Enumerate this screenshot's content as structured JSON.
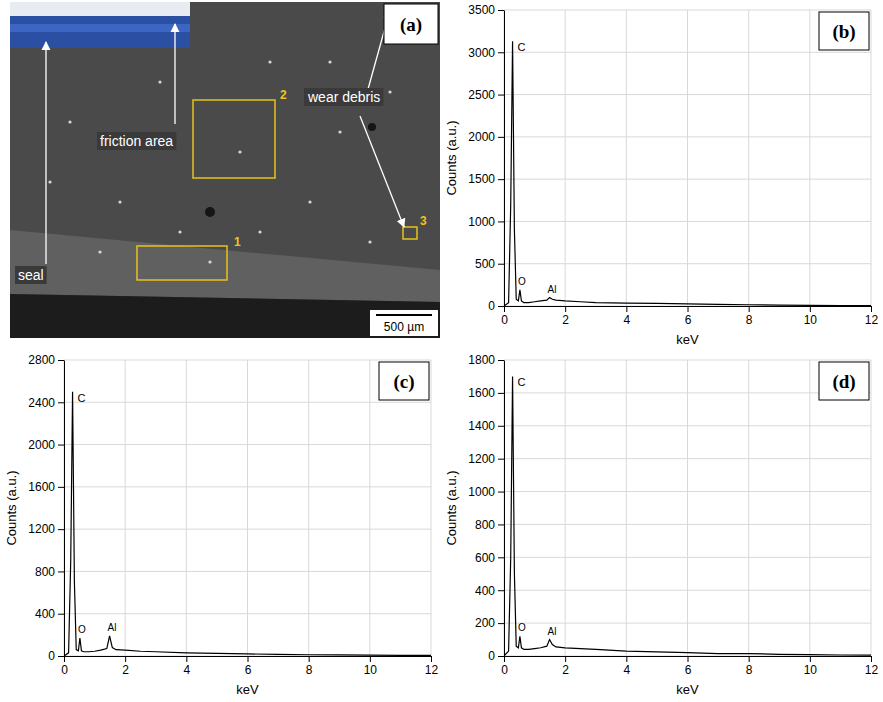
{
  "panel_a": {
    "label": "(a)",
    "annotations": [
      "seal",
      "friction area",
      "wear debris"
    ],
    "regions": [
      "1",
      "2",
      "3"
    ],
    "scale_bar": "500 µm"
  },
  "chart_data": [
    {
      "type": "line",
      "title": "(b)",
      "x_label": "keV",
      "y_label": "Counts (a.u.)",
      "color": "#000000",
      "grid": true,
      "x": [
        0,
        0.15,
        0.22,
        0.28,
        0.34,
        0.4,
        0.47,
        0.52,
        0.57,
        0.65,
        0.8,
        1.0,
        1.2,
        1.4,
        1.49,
        1.58,
        1.7,
        2,
        2.5,
        3,
        4,
        5,
        6,
        7,
        8,
        9,
        10,
        11,
        12
      ],
      "values": [
        0,
        40,
        1200,
        3130,
        900,
        80,
        60,
        190,
        60,
        40,
        40,
        50,
        60,
        70,
        100,
        80,
        70,
        60,
        50,
        40,
        35,
        30,
        25,
        20,
        15,
        10,
        8,
        6,
        5
      ],
      "xlim": [
        0,
        12
      ],
      "xticks": [
        0,
        2,
        4,
        6,
        8,
        10,
        12
      ],
      "ylim": [
        0,
        3500
      ],
      "yticks": [
        0,
        500,
        1000,
        1500,
        2000,
        2500,
        3000,
        3500
      ],
      "annotations": [
        {
          "text": "C",
          "x": 0.28,
          "y": 3130
        },
        {
          "text": "O",
          "x": 0.52,
          "y": 190
        },
        {
          "text": "Al",
          "x": 1.49,
          "y": 100
        }
      ]
    },
    {
      "type": "line",
      "title": "(c)",
      "x_label": "keV",
      "y_label": "Counts (a.u.)",
      "color": "#000000",
      "grid": true,
      "x": [
        0,
        0.15,
        0.22,
        0.28,
        0.34,
        0.4,
        0.47,
        0.52,
        0.57,
        0.65,
        0.8,
        1.0,
        1.2,
        1.4,
        1.49,
        1.58,
        1.7,
        2,
        2.5,
        3,
        4,
        5,
        6,
        7,
        8,
        9,
        10,
        11,
        12
      ],
      "values": [
        0,
        30,
        900,
        2500,
        700,
        60,
        50,
        170,
        50,
        40,
        40,
        45,
        55,
        70,
        190,
        80,
        60,
        55,
        45,
        40,
        30,
        25,
        20,
        15,
        12,
        10,
        8,
        6,
        5
      ],
      "xlim": [
        0,
        12
      ],
      "xticks": [
        0,
        2,
        4,
        6,
        8,
        10,
        12
      ],
      "ylim": [
        0,
        2800
      ],
      "yticks": [
        0,
        400,
        800,
        1200,
        1600,
        2000,
        2400,
        2800
      ],
      "annotations": [
        {
          "text": "C",
          "x": 0.28,
          "y": 2500
        },
        {
          "text": "O",
          "x": 0.52,
          "y": 170
        },
        {
          "text": "Al",
          "x": 1.49,
          "y": 190
        }
      ]
    },
    {
      "type": "line",
      "title": "(d)",
      "x_label": "keV",
      "y_label": "Counts (a.u.)",
      "color": "#000000",
      "grid": true,
      "x": [
        0,
        0.15,
        0.22,
        0.28,
        0.34,
        0.4,
        0.47,
        0.52,
        0.57,
        0.65,
        0.8,
        1.0,
        1.2,
        1.4,
        1.49,
        1.58,
        1.7,
        2,
        2.5,
        3,
        4,
        5,
        6,
        7,
        8,
        9,
        10,
        11,
        12
      ],
      "values": [
        0,
        30,
        600,
        1700,
        500,
        60,
        50,
        120,
        50,
        40,
        40,
        45,
        50,
        60,
        100,
        70,
        55,
        50,
        45,
        40,
        30,
        25,
        20,
        15,
        15,
        10,
        8,
        6,
        5
      ],
      "xlim": [
        0,
        12
      ],
      "xticks": [
        0,
        2,
        4,
        6,
        8,
        10,
        12
      ],
      "ylim": [
        0,
        1800
      ],
      "yticks": [
        0,
        200,
        400,
        600,
        800,
        1000,
        1200,
        1400,
        1600,
        1800
      ],
      "annotations": [
        {
          "text": "C",
          "x": 0.28,
          "y": 1700
        },
        {
          "text": "O",
          "x": 0.52,
          "y": 120
        },
        {
          "text": "Al",
          "x": 1.49,
          "y": 100
        }
      ]
    }
  ]
}
